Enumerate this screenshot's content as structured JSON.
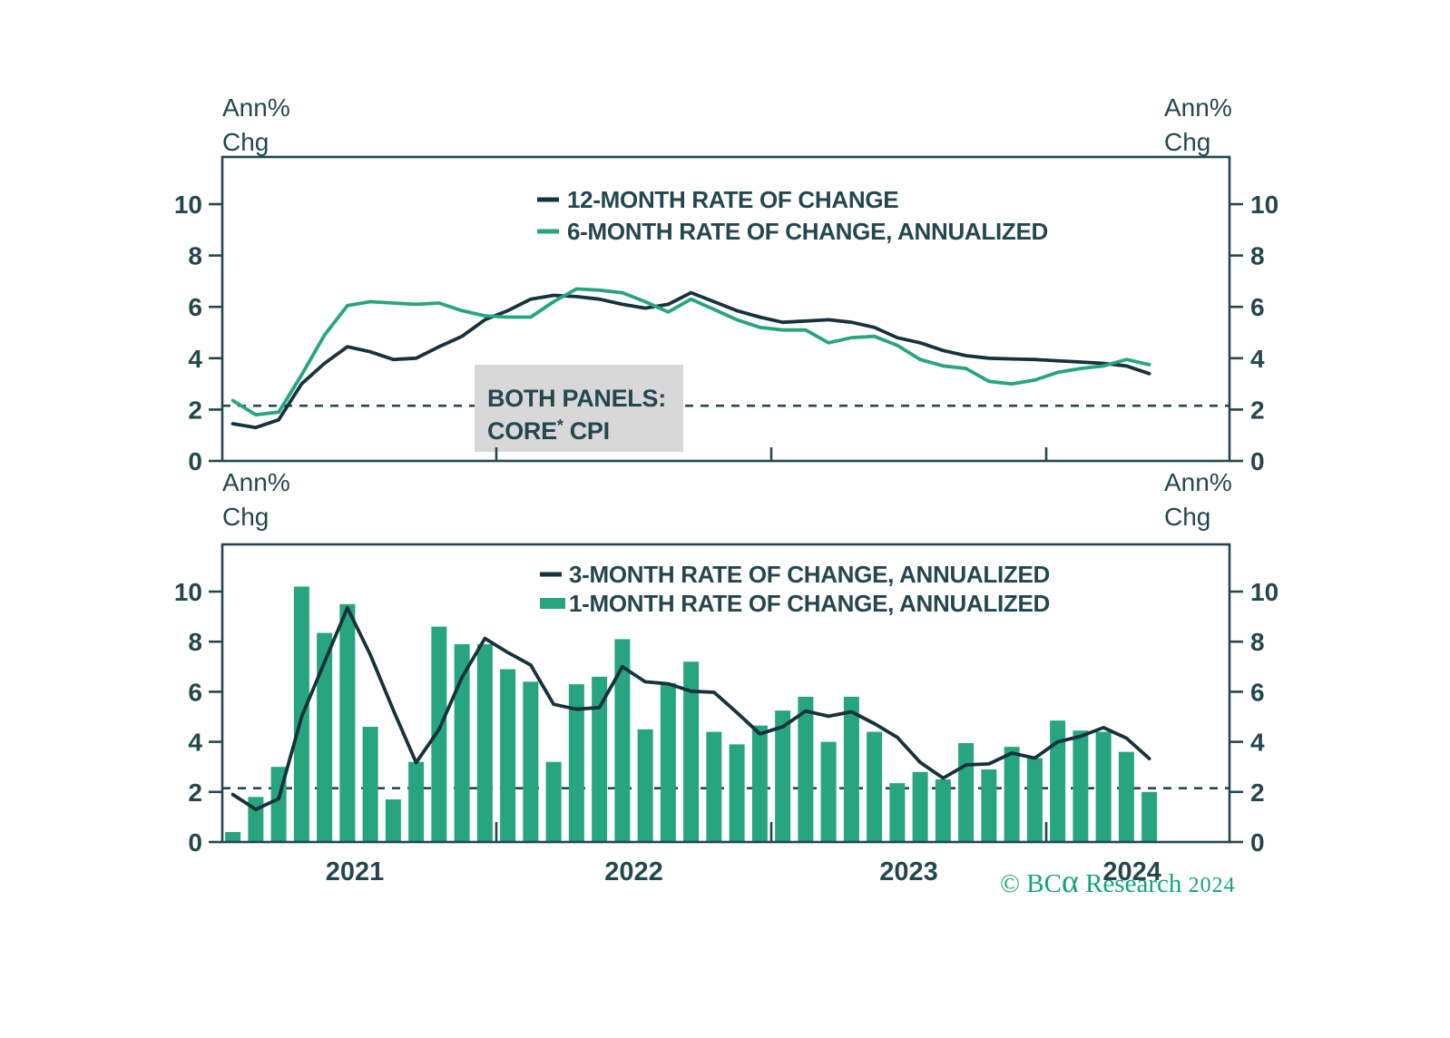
{
  "figure": {
    "axis_unit_label_lines": [
      "Ann%",
      "Chg"
    ],
    "colors": {
      "ink": "#24474f",
      "dark_line": "#16323c",
      "green": "#27a57e",
      "annotation_bg": "#d8d8d8",
      "footer_green": "#12a47b"
    }
  },
  "footer": {
    "pre": "© BC",
    "alpha": "α",
    "post": " Research",
    "year": "2024"
  },
  "annotation": {
    "line1": "BOTH PANELS:",
    "line2_main": "CORE",
    "line2_sup": "*",
    "line2_rest": " CPI"
  },
  "chart_data": [
    {
      "panel": "top",
      "type": "line",
      "y_axis_unit_label": "Ann% Chg",
      "x_monthly": [
        "2021-01",
        "2021-02",
        "2021-03",
        "2021-04",
        "2021-05",
        "2021-06",
        "2021-07",
        "2021-08",
        "2021-09",
        "2021-10",
        "2021-11",
        "2021-12",
        "2022-01",
        "2022-02",
        "2022-03",
        "2022-04",
        "2022-05",
        "2022-06",
        "2022-07",
        "2022-08",
        "2022-09",
        "2022-10",
        "2022-11",
        "2022-12",
        "2023-01",
        "2023-02",
        "2023-03",
        "2023-04",
        "2023-05",
        "2023-06",
        "2023-07",
        "2023-08",
        "2023-09",
        "2023-10",
        "2023-11",
        "2023-12",
        "2024-01",
        "2024-02",
        "2024-03",
        "2024-04",
        "2024-05"
      ],
      "series": [
        {
          "name": "12-MONTH RATE OF CHANGE",
          "style": "line",
          "color_key": "dark_line",
          "values": [
            1.45,
            1.3,
            1.6,
            3.0,
            3.8,
            4.45,
            4.25,
            3.95,
            4.0,
            4.45,
            4.85,
            5.5,
            5.85,
            6.3,
            6.45,
            6.4,
            6.3,
            6.1,
            5.95,
            6.1,
            6.55,
            6.2,
            5.85,
            5.6,
            5.4,
            5.45,
            5.5,
            5.4,
            5.2,
            4.8,
            4.6,
            4.3,
            4.1,
            4.0,
            3.97,
            3.95,
            3.9,
            3.85,
            3.8,
            3.7,
            3.4
          ]
        },
        {
          "name": "6-MONTH RATE OF CHANGE, ANNUALIZED",
          "style": "line",
          "color_key": "green",
          "values": [
            2.35,
            1.8,
            1.9,
            3.35,
            4.9,
            6.05,
            6.2,
            6.15,
            6.1,
            6.15,
            5.85,
            5.65,
            5.6,
            5.6,
            6.2,
            6.7,
            6.65,
            6.55,
            6.2,
            5.8,
            6.3,
            5.9,
            5.5,
            5.2,
            5.1,
            5.1,
            4.6,
            4.8,
            4.85,
            4.5,
            3.95,
            3.7,
            3.6,
            3.1,
            3.0,
            3.15,
            3.45,
            3.6,
            3.7,
            3.95,
            3.75
          ]
        }
      ],
      "yticks": [
        0,
        2,
        4,
        6,
        8,
        10
      ],
      "ylim": [
        0,
        11.85
      ],
      "dashed_reference_line": 2.15,
      "legend_position": "top-center",
      "grid": false
    },
    {
      "panel": "bottom",
      "type": "bar+line",
      "y_axis_unit_label": "Ann% Chg",
      "x_monthly": [
        "2021-01",
        "2021-02",
        "2021-03",
        "2021-04",
        "2021-05",
        "2021-06",
        "2021-07",
        "2021-08",
        "2021-09",
        "2021-10",
        "2021-11",
        "2021-12",
        "2022-01",
        "2022-02",
        "2022-03",
        "2022-04",
        "2022-05",
        "2022-06",
        "2022-07",
        "2022-08",
        "2022-09",
        "2022-10",
        "2022-11",
        "2022-12",
        "2023-01",
        "2023-02",
        "2023-03",
        "2023-04",
        "2023-05",
        "2023-06",
        "2023-07",
        "2023-08",
        "2023-09",
        "2023-10",
        "2023-11",
        "2023-12",
        "2024-01",
        "2024-02",
        "2024-03",
        "2024-04",
        "2024-05"
      ],
      "series": [
        {
          "name": "3-MONTH RATE OF CHANGE, ANNUALIZED",
          "style": "line",
          "color_key": "dark_line",
          "values": [
            1.9,
            1.3,
            1.73,
            5.0,
            7.18,
            9.35,
            7.48,
            5.27,
            3.17,
            4.5,
            6.57,
            8.13,
            7.57,
            7.07,
            5.5,
            5.3,
            5.37,
            7.0,
            6.4,
            6.32,
            6.02,
            5.98,
            5.17,
            4.32,
            4.6,
            5.23,
            5.02,
            5.2,
            4.73,
            4.18,
            3.18,
            2.55,
            3.08,
            3.12,
            3.55,
            3.35,
            4.0,
            4.22,
            4.57,
            4.15,
            3.33
          ]
        },
        {
          "name": "1-MONTH RATE OF CHANGE, ANNUALIZED",
          "style": "bar",
          "color_key": "green",
          "values": [
            0.4,
            1.8,
            3.0,
            10.2,
            8.35,
            9.5,
            4.6,
            1.7,
            3.2,
            8.6,
            7.9,
            7.9,
            6.9,
            6.4,
            3.2,
            6.3,
            6.6,
            8.1,
            4.5,
            6.35,
            7.2,
            4.4,
            3.9,
            4.65,
            5.25,
            5.8,
            4.0,
            5.8,
            4.4,
            2.35,
            2.8,
            2.5,
            3.95,
            2.9,
            3.8,
            3.35,
            4.85,
            4.45,
            4.4,
            3.6,
            2.0
          ]
        }
      ],
      "yticks": [
        0,
        2,
        4,
        6,
        8,
        10
      ],
      "ylim": [
        0,
        11.85
      ],
      "dashed_reference_line": 2.15,
      "x_year_labels": [
        "2021",
        "2022",
        "2023",
        "2024"
      ],
      "x_label_month_positions": [
        5.82,
        18,
        30,
        39.75
      ],
      "x_year_boundary_ticks_months": [
        12,
        24,
        36
      ],
      "legend_position": "top-center",
      "grid": false
    }
  ]
}
